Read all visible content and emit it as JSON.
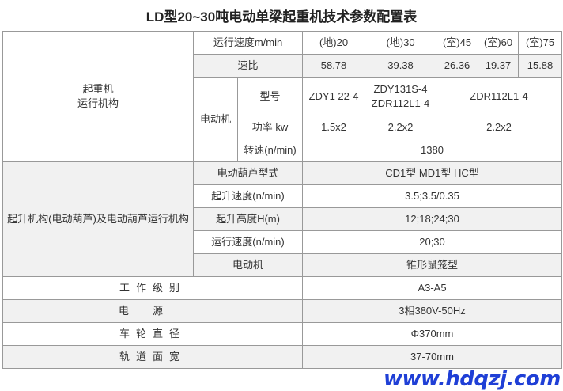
{
  "title": "LD型20~30吨电动单梁起重机技术参数配置表",
  "crane_travel": {
    "label_line1": "起重机",
    "label_line2": "运行机构",
    "speed_label": "运行速度m/min",
    "speeds": [
      "(地)20",
      "(地)30",
      "(室)45",
      "(室)60",
      "(室)75"
    ],
    "ratio_label": "速比",
    "ratios": [
      "58.78",
      "39.38",
      "26.36",
      "19.37",
      "15.88"
    ],
    "motor_label": "电动机",
    "model_label": "型号",
    "models": [
      "ZDY1 22-4",
      "ZDY131S-4",
      "ZDR112L1-4",
      "ZDR112L1-4"
    ],
    "power_label": "功率 kw",
    "powers": [
      "1.5x2",
      "2.2x2",
      "2.2x2"
    ],
    "rpm_label": "转速(n/min)",
    "rpm": "1380"
  },
  "hoist": {
    "label": "起升机构(电动葫芦)及电动葫芦运行机构",
    "rows": [
      {
        "label": "电动葫芦型式",
        "value": "CD1型 MD1型 HC型"
      },
      {
        "label": "起升速度(n/min)",
        "value": "3.5;3.5/0.35"
      },
      {
        "label": "起升高度H(m)",
        "value": "12;18;24;30"
      },
      {
        "label": "运行速度(n/min)",
        "value": "20;30"
      },
      {
        "label": "电动机",
        "value": "锥形鼠笼型"
      }
    ]
  },
  "general": [
    {
      "label": "工作级别",
      "value": "A3-A5"
    },
    {
      "label": "电源",
      "value": "3相380V-50Hz"
    },
    {
      "label": "车轮直径",
      "value": "Φ370mm"
    },
    {
      "label": "轨道面宽",
      "value": "37-70mm"
    }
  ],
  "watermark": "www.hdqzj.com"
}
